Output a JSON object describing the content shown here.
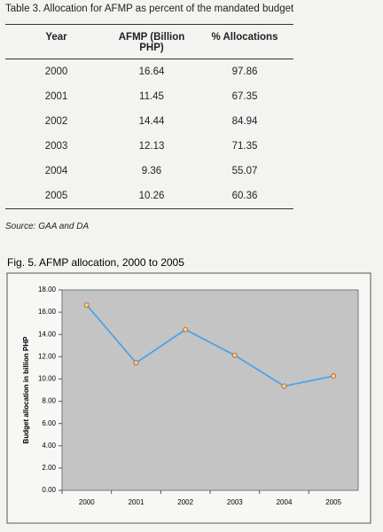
{
  "table": {
    "title": "Table 3. Allocation for AFMP as percent of the mandated budget",
    "header": [
      "Year",
      "AFMP (Billion PHP)",
      "% Allocations"
    ],
    "rows": [
      [
        "2000",
        "16.64",
        "97.86"
      ],
      [
        "2001",
        "11.45",
        "67.35"
      ],
      [
        "2002",
        "14.44",
        "84.94"
      ],
      [
        "2003",
        "12.13",
        "71.35"
      ],
      [
        "2004",
        "9.36",
        "55.07"
      ],
      [
        "2005",
        "10.26",
        "60.36"
      ]
    ],
    "source": "Source: GAA and DA"
  },
  "chart_data": {
    "type": "line",
    "title": "Fig. 5. AFMP allocation, 2000 to 2005",
    "y_label": "Budget allocation in billion PHP",
    "categories": [
      "2000",
      "2001",
      "2002",
      "2003",
      "2004",
      "2005"
    ],
    "values": [
      16.64,
      11.45,
      14.44,
      12.13,
      9.36,
      10.26
    ],
    "color": "#4da3e8",
    "plot_background": "#c4c4c4",
    "ylim": [
      0,
      18
    ],
    "yticks": [
      {
        "value": 0,
        "label": "0.00"
      },
      {
        "value": 2,
        "label": "2.00"
      },
      {
        "value": 4,
        "label": "4.00"
      },
      {
        "value": 6,
        "label": "6.00"
      },
      {
        "value": 8,
        "label": "8.00"
      },
      {
        "value": 10,
        "label": "10.00"
      },
      {
        "value": 12,
        "label": "12.00"
      },
      {
        "value": 14,
        "label": "14.00"
      },
      {
        "value": 16,
        "label": "16.00"
      },
      {
        "value": 18,
        "label": "18.00"
      }
    ]
  }
}
